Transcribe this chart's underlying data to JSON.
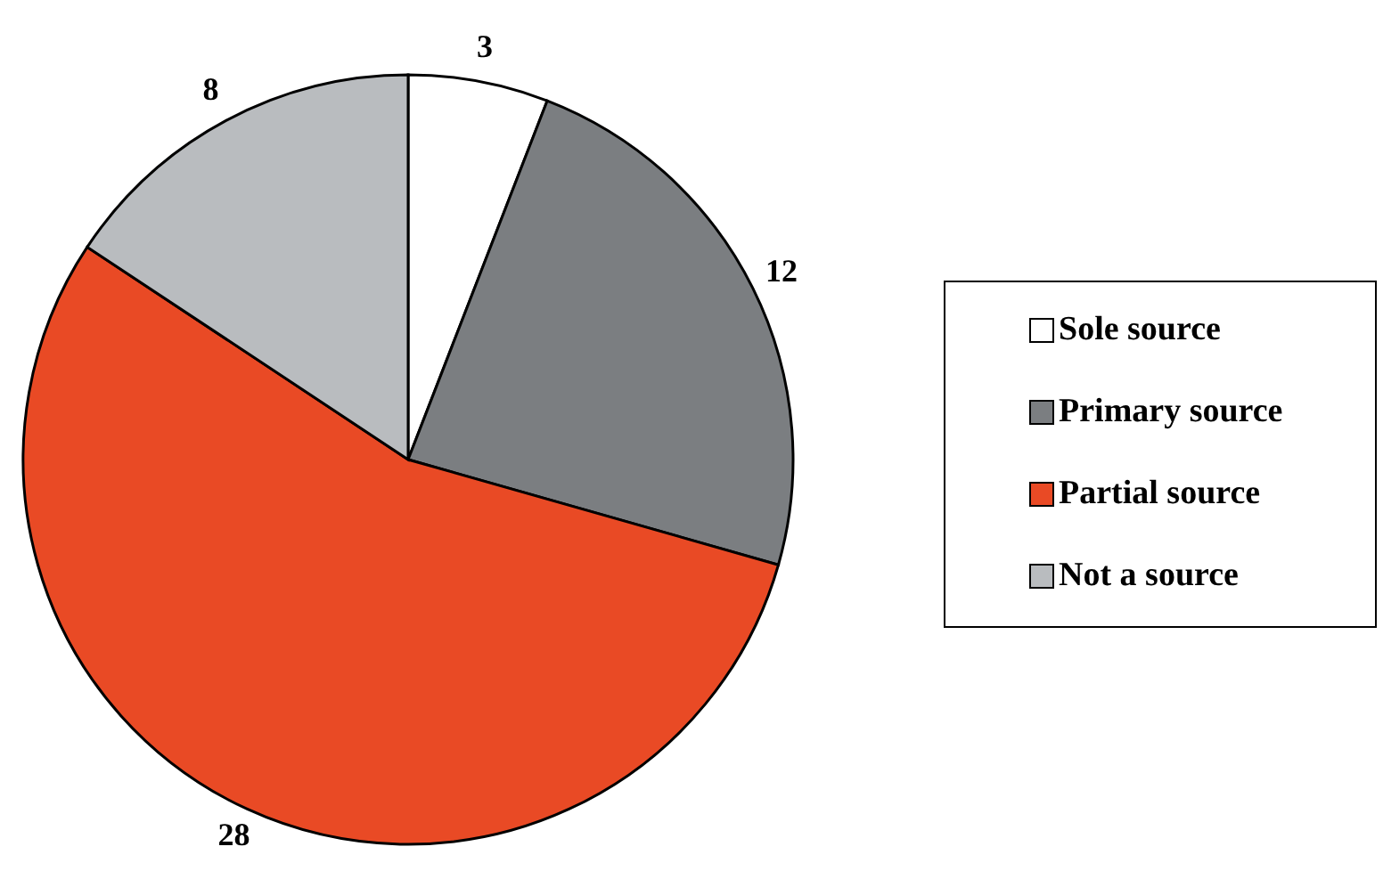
{
  "chart_data": {
    "type": "pie",
    "categories": [
      "Sole source",
      "Primary source",
      "Partial source",
      "Not a source"
    ],
    "values": [
      3,
      12,
      28,
      8
    ],
    "colors": [
      "#ffffff",
      "#7b7e81",
      "#e94a25",
      "#b9bcbf"
    ],
    "data_labels": true,
    "legend": "right"
  }
}
